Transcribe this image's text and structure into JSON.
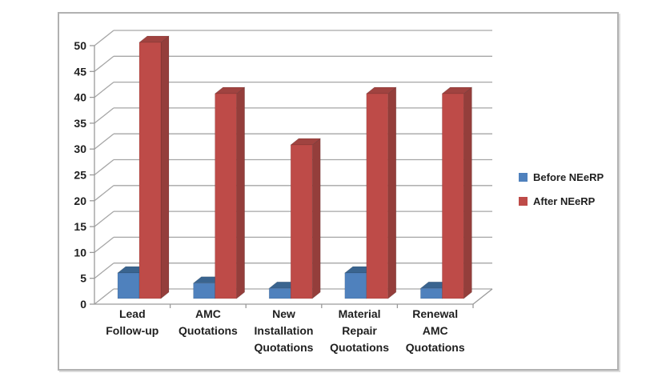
{
  "window": {
    "background": "#ffffff"
  },
  "chart_data": {
    "type": "bar",
    "style": "3d-clustered-column",
    "title": "",
    "xlabel": "",
    "ylabel": "",
    "categories": [
      [
        "Lead",
        "Follow-up"
      ],
      [
        "AMC",
        "Quotations"
      ],
      [
        "New",
        "Installation",
        "Quotations"
      ],
      [
        "Material",
        "Repair",
        "Quotations"
      ],
      [
        "Renewal",
        "AMC",
        "Quotations"
      ]
    ],
    "series": [
      {
        "name": "Before NEeRP",
        "color": "#4f81bd",
        "top_color": "#3a648f",
        "side_color": "#38608c",
        "values": [
          5,
          3,
          2,
          5,
          2
        ]
      },
      {
        "name": "After NEeRP",
        "color": "#be4b48",
        "top_color": "#a04340",
        "side_color": "#943e3b",
        "values": [
          50,
          40,
          30,
          40,
          40
        ]
      }
    ],
    "ylim": [
      0,
      50
    ],
    "yticks": [
      0,
      5,
      10,
      15,
      20,
      25,
      30,
      35,
      40,
      45,
      50
    ],
    "grid": true,
    "legend_position": "right",
    "colors": {
      "grid": "#a6a6a6",
      "axis": "#9a9a9a",
      "text": "#1f1f1f",
      "box_border": "#b1b1b1"
    }
  }
}
